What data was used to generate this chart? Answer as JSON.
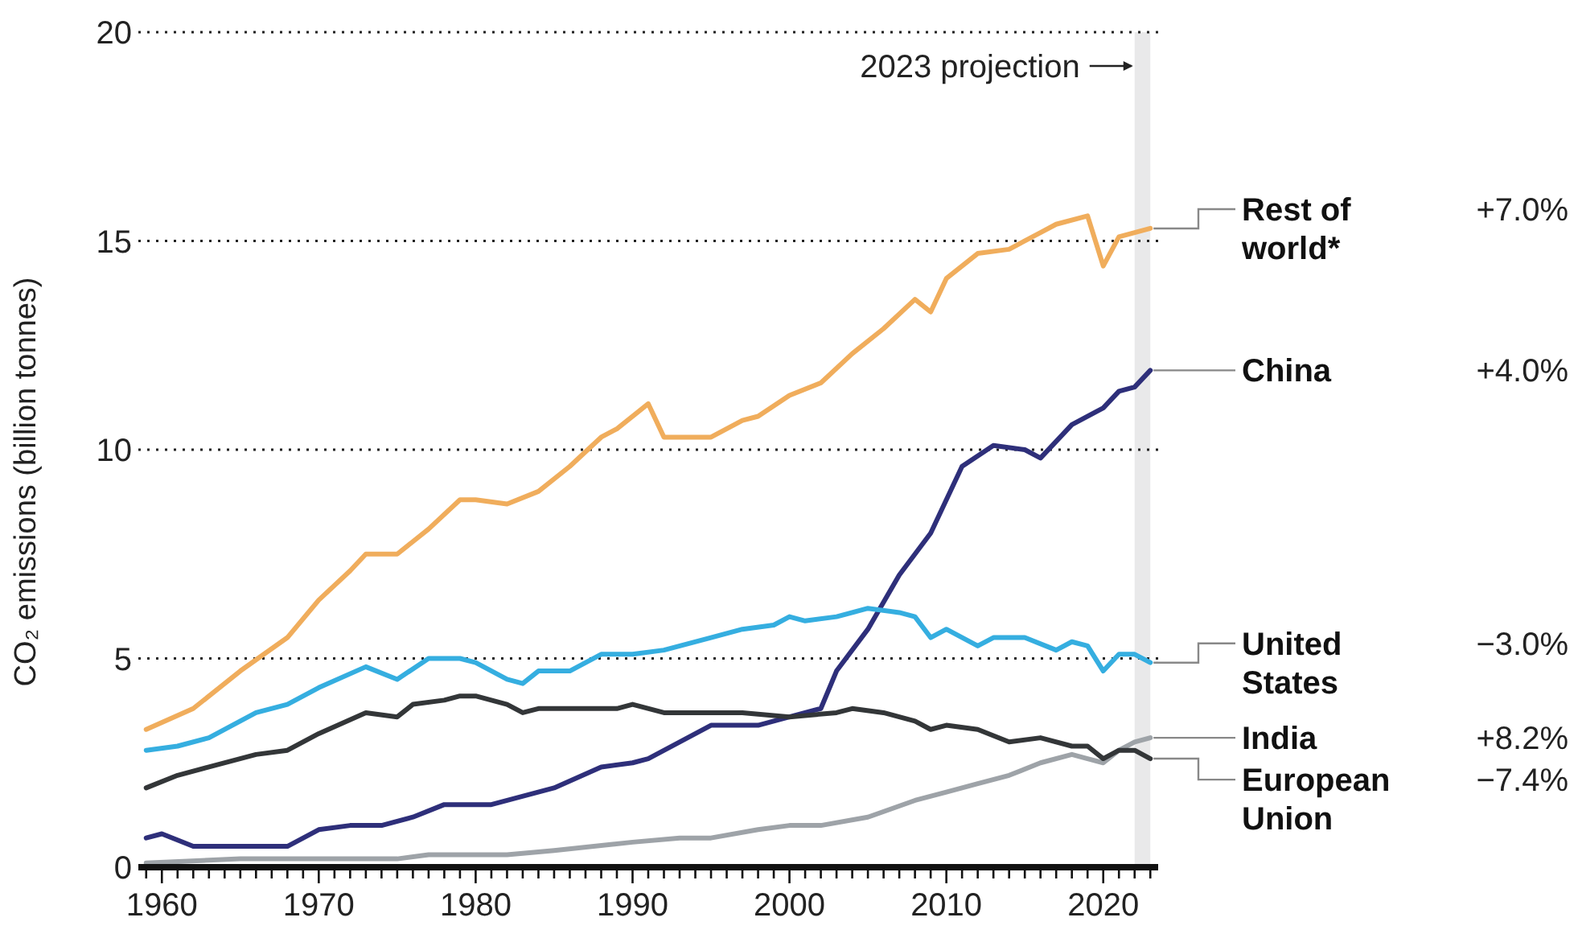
{
  "chart_data": {
    "type": "line",
    "ylabel": "CO₂ emissions (billion tonnes)",
    "xlim": [
      1958.5,
      2023.5
    ],
    "ylim": [
      0,
      20
    ],
    "xticks": [
      {
        "value": 1959,
        "label": null
      },
      1960,
      {
        "value": 1961,
        "label": null
      },
      {
        "value": 1962,
        "label": null
      },
      {
        "value": 1963,
        "label": null
      },
      {
        "value": 1964,
        "label": null
      },
      {
        "value": 1965,
        "label": null
      },
      {
        "value": 1966,
        "label": null
      },
      {
        "value": 1967,
        "label": null
      },
      {
        "value": 1968,
        "label": null
      },
      {
        "value": 1969,
        "label": null
      },
      1970,
      {
        "value": 1971,
        "label": null
      },
      {
        "value": 1972,
        "label": null
      },
      {
        "value": 1973,
        "label": null
      },
      {
        "value": 1974,
        "label": null
      },
      {
        "value": 1975,
        "label": null
      },
      {
        "value": 1976,
        "label": null
      },
      {
        "value": 1977,
        "label": null
      },
      {
        "value": 1978,
        "label": null
      },
      {
        "value": 1979,
        "label": null
      },
      1980,
      {
        "value": 1981,
        "label": null
      },
      {
        "value": 1982,
        "label": null
      },
      {
        "value": 1983,
        "label": null
      },
      {
        "value": 1984,
        "label": null
      },
      {
        "value": 1985,
        "label": null
      },
      {
        "value": 1986,
        "label": null
      },
      {
        "value": 1987,
        "label": null
      },
      {
        "value": 1988,
        "label": null
      },
      {
        "value": 1989,
        "label": null
      },
      1990,
      {
        "value": 1991,
        "label": null
      },
      {
        "value": 1992,
        "label": null
      },
      {
        "value": 1993,
        "label": null
      },
      {
        "value": 1994,
        "label": null
      },
      {
        "value": 1995,
        "label": null
      },
      {
        "value": 1996,
        "label": null
      },
      {
        "value": 1997,
        "label": null
      },
      {
        "value": 1998,
        "label": null
      },
      {
        "value": 1999,
        "label": null
      },
      2000,
      {
        "value": 2001,
        "label": null
      },
      {
        "value": 2002,
        "label": null
      },
      {
        "value": 2003,
        "label": null
      },
      {
        "value": 2004,
        "label": null
      },
      {
        "value": 2005,
        "label": null
      },
      {
        "value": 2006,
        "label": null
      },
      {
        "value": 2007,
        "label": null
      },
      {
        "value": 2008,
        "label": null
      },
      {
        "value": 2009,
        "label": null
      },
      2010,
      {
        "value": 2011,
        "label": null
      },
      {
        "value": 2012,
        "label": null
      },
      {
        "value": 2013,
        "label": null
      },
      {
        "value": 2014,
        "label": null
      },
      {
        "value": 2015,
        "label": null
      },
      {
        "value": 2016,
        "label": null
      },
      {
        "value": 2017,
        "label": null
      },
      {
        "value": 2018,
        "label": null
      },
      {
        "value": 2019,
        "label": null
      },
      2020,
      {
        "value": 2021,
        "label": null
      },
      {
        "value": 2022,
        "label": null
      },
      {
        "value": 2023,
        "label": null
      }
    ],
    "yticks": [
      0,
      5,
      10,
      15,
      20
    ],
    "grid": "y",
    "marker": "none",
    "line_style": "solid",
    "series": [
      {
        "name": "Rest of world*",
        "color": "#f0ad5c",
        "x": [
          1959,
          1962,
          1965,
          1968,
          1970,
          1972,
          1973,
          1975,
          1977,
          1979,
          1980,
          1982,
          1984,
          1986,
          1988,
          1989,
          1991,
          1992,
          1995,
          1997,
          1998,
          2000,
          2002,
          2004,
          2006,
          2008,
          2009,
          2010,
          2012,
          2014,
          2016,
          2017,
          2019,
          2020,
          2021,
          2023
        ],
        "values": [
          3.3,
          3.8,
          4.7,
          5.5,
          6.4,
          7.1,
          7.5,
          7.5,
          8.1,
          8.8,
          8.8,
          8.7,
          9.0,
          9.6,
          10.3,
          10.5,
          11.1,
          10.3,
          10.3,
          10.7,
          10.8,
          11.3,
          11.6,
          12.3,
          12.9,
          13.6,
          13.3,
          14.1,
          14.7,
          14.8,
          15.2,
          15.4,
          15.6,
          14.4,
          15.1,
          15.3
        ]
      },
      {
        "name": "China",
        "color": "#2e2f7a",
        "x": [
          1959,
          1960,
          1962,
          1968,
          1970,
          1972,
          1974,
          1976,
          1978,
          1981,
          1985,
          1988,
          1990,
          1991,
          1995,
          1998,
          2000,
          2002,
          2003,
          2005,
          2007,
          2009,
          2011,
          2013,
          2015,
          2016,
          2018,
          2020,
          2021,
          2022,
          2023
        ],
        "values": [
          0.7,
          0.8,
          0.5,
          0.5,
          0.9,
          1.0,
          1.0,
          1.2,
          1.5,
          1.5,
          1.9,
          2.4,
          2.5,
          2.6,
          3.4,
          3.4,
          3.6,
          3.8,
          4.7,
          5.7,
          7.0,
          8.0,
          9.6,
          10.1,
          10.0,
          9.8,
          10.6,
          11.0,
          11.4,
          11.5,
          11.9
        ]
      },
      {
        "name": "United States",
        "color": "#35aee0",
        "x": [
          1959,
          1961,
          1963,
          1966,
          1968,
          1970,
          1973,
          1975,
          1977,
          1979,
          1980,
          1982,
          1983,
          1984,
          1986,
          1988,
          1990,
          1992,
          1995,
          1997,
          1999,
          2000,
          2001,
          2003,
          2005,
          2007,
          2008,
          2009,
          2010,
          2012,
          2013,
          2015,
          2017,
          2018,
          2019,
          2020,
          2021,
          2022,
          2023
        ],
        "values": [
          2.8,
          2.9,
          3.1,
          3.7,
          3.9,
          4.3,
          4.8,
          4.5,
          5.0,
          5.0,
          4.9,
          4.5,
          4.4,
          4.7,
          4.7,
          5.1,
          5.1,
          5.2,
          5.5,
          5.7,
          5.8,
          6.0,
          5.9,
          6.0,
          6.2,
          6.1,
          6.0,
          5.5,
          5.7,
          5.3,
          5.5,
          5.5,
          5.2,
          5.4,
          5.3,
          4.7,
          5.1,
          5.1,
          4.9
        ]
      },
      {
        "name": "India",
        "color": "#9ea3a8",
        "x": [
          1959,
          1965,
          1975,
          1977,
          1982,
          1985,
          1990,
          1993,
          1995,
          1998,
          2000,
          2002,
          2005,
          2008,
          2010,
          2012,
          2014,
          2016,
          2018,
          2019,
          2020,
          2021,
          2022,
          2023
        ],
        "values": [
          0.1,
          0.2,
          0.2,
          0.3,
          0.3,
          0.4,
          0.6,
          0.7,
          0.7,
          0.9,
          1.0,
          1.0,
          1.2,
          1.6,
          1.8,
          2.0,
          2.2,
          2.5,
          2.7,
          2.6,
          2.5,
          2.8,
          3.0,
          3.1
        ]
      },
      {
        "name": "European Union",
        "color": "#333638",
        "x": [
          1959,
          1961,
          1963,
          1966,
          1968,
          1970,
          1973,
          1975,
          1976,
          1978,
          1979,
          1980,
          1982,
          1983,
          1984,
          1989,
          1990,
          1992,
          1995,
          1997,
          2000,
          2003,
          2004,
          2006,
          2008,
          2009,
          2010,
          2012,
          2014,
          2016,
          2018,
          2019,
          2020,
          2021,
          2022,
          2023
        ],
        "values": [
          1.9,
          2.2,
          2.4,
          2.7,
          2.8,
          3.2,
          3.7,
          3.6,
          3.9,
          4.0,
          4.1,
          4.1,
          3.9,
          3.7,
          3.8,
          3.8,
          3.9,
          3.7,
          3.7,
          3.7,
          3.6,
          3.7,
          3.8,
          3.7,
          3.5,
          3.3,
          3.4,
          3.3,
          3.0,
          3.1,
          2.9,
          2.9,
          2.6,
          2.8,
          2.8,
          2.6
        ]
      }
    ],
    "bands": [
      {
        "axis": "x",
        "from": 2022,
        "to": 2023,
        "label": "2023 projection",
        "color": "#e9e9ea"
      }
    ],
    "annotations": [
      "+7.0%",
      "+4.0%",
      "−3.0%",
      "+8.2%",
      "−7.4%"
    ]
  }
}
